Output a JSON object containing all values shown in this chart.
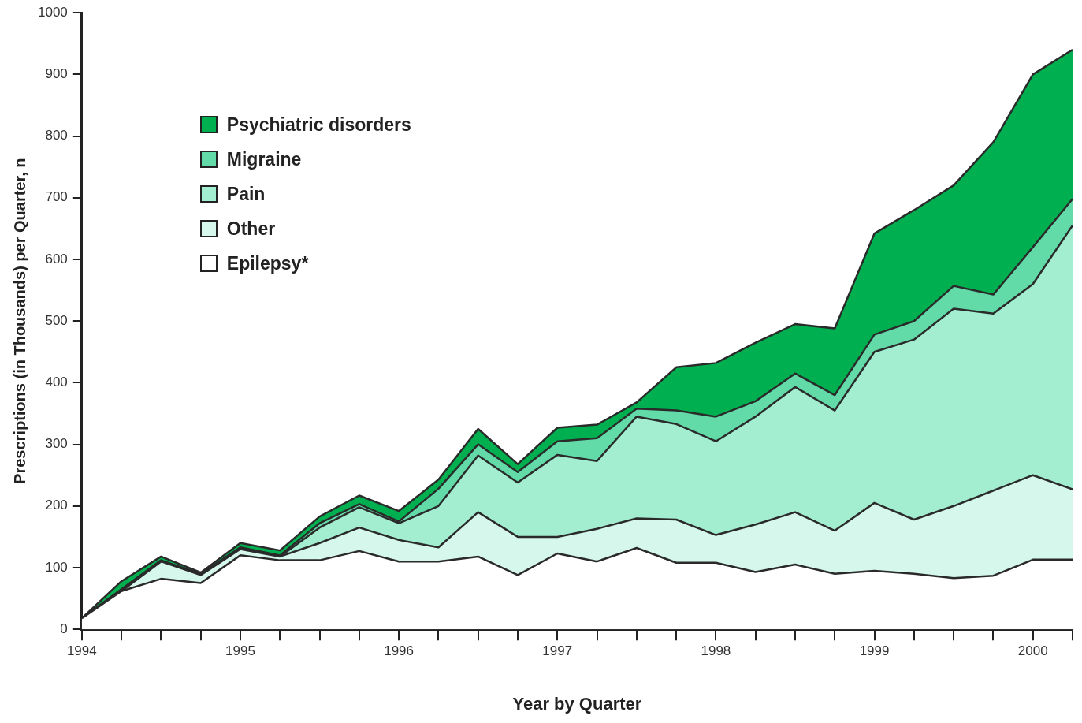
{
  "chart_data": {
    "type": "area",
    "stacked": true,
    "xlabel": "Year by Quarter",
    "ylabel": "Prescriptions (in Thousands) per Quarter, n",
    "x": [
      1994,
      1994.25,
      1994.5,
      1994.75,
      1995,
      1995.25,
      1995.5,
      1995.75,
      1996,
      1996.25,
      1996.5,
      1996.75,
      1997,
      1997.25,
      1997.5,
      1997.75,
      1998,
      1998.25,
      1998.5,
      1998.75,
      1999,
      1999.25,
      1999.5,
      1999.75,
      2000,
      2000.25
    ],
    "series": [
      {
        "name": "Epilepsy*",
        "color": "#ffffff",
        "values": [
          18,
          62,
          82,
          75,
          120,
          112,
          112,
          127,
          110,
          110,
          118,
          88,
          123,
          110,
          132,
          108,
          108,
          93,
          105,
          90,
          95,
          90,
          83,
          87,
          113,
          113
        ]
      },
      {
        "name": "Other",
        "color": "#d6f7eb",
        "values": [
          0,
          0,
          28,
          13,
          10,
          6,
          28,
          38,
          35,
          23,
          72,
          62,
          27,
          53,
          48,
          70,
          45,
          77,
          85,
          70,
          110,
          88,
          117,
          138,
          137,
          114
        ]
      },
      {
        "name": "Pain",
        "color": "#a3edd1",
        "values": [
          0,
          0,
          0,
          0,
          0,
          0,
          25,
          33,
          27,
          67,
          92,
          88,
          133,
          110,
          165,
          155,
          152,
          175,
          203,
          195,
          245,
          292,
          320,
          287,
          310,
          428
        ]
      },
      {
        "name": "Migraine",
        "color": "#62dba8",
        "values": [
          0,
          3,
          2,
          2,
          3,
          2,
          7,
          5,
          3,
          28,
          18,
          17,
          22,
          37,
          13,
          22,
          40,
          25,
          22,
          25,
          28,
          30,
          37,
          31,
          60,
          43
        ]
      },
      {
        "name": "Psychiatric disorders",
        "color": "#00b050",
        "values": [
          0,
          13,
          6,
          2,
          7,
          8,
          11,
          14,
          17,
          15,
          25,
          13,
          22,
          22,
          10,
          70,
          87,
          95,
          80,
          108,
          164,
          180,
          163,
          247,
          280,
          242
        ]
      }
    ],
    "xlim": [
      1994,
      2000.25
    ],
    "xticks": [
      1994,
      {
        "value": 1994.25,
        "label": null
      },
      {
        "value": 1994.5,
        "label": null
      },
      {
        "value": 1994.75,
        "label": null
      },
      1995,
      {
        "value": 1995.25,
        "label": null
      },
      {
        "value": 1995.5,
        "label": null
      },
      {
        "value": 1995.75,
        "label": null
      },
      1996,
      {
        "value": 1996.25,
        "label": null
      },
      {
        "value": 1996.5,
        "label": null
      },
      {
        "value": 1996.75,
        "label": null
      },
      1997,
      {
        "value": 1997.25,
        "label": null
      },
      {
        "value": 1997.5,
        "label": null
      },
      {
        "value": 1997.75,
        "label": null
      },
      1998,
      {
        "value": 1998.25,
        "label": null
      },
      {
        "value": 1998.5,
        "label": null
      },
      {
        "value": 1998.75,
        "label": null
      },
      1999,
      {
        "value": 1999.25,
        "label": null
      },
      {
        "value": 1999.5,
        "label": null
      },
      {
        "value": 1999.75,
        "label": null
      },
      2000,
      {
        "value": 2000.25,
        "label": null
      }
    ],
    "ylim": [
      0,
      1000
    ],
    "yticks": [
      0,
      100,
      200,
      300,
      400,
      500,
      600,
      700,
      800,
      900,
      1000
    ],
    "legend": "top left"
  }
}
